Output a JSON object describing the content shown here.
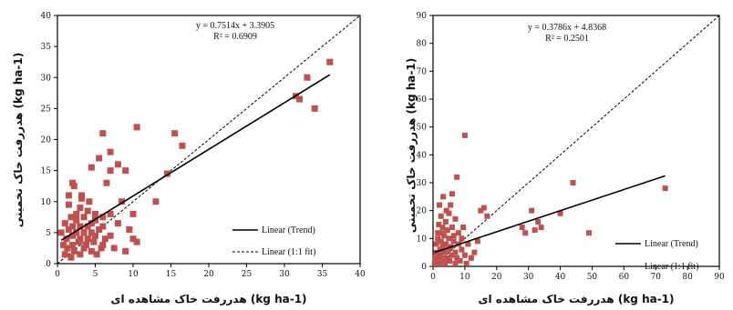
{
  "chart_data": [
    {
      "type": "scatter",
      "xlabel": "هدررفت خاک مشاهده ای (kg ha-1)",
      "ylabel": "هدررفت خاک تخمینی (kg ha-1)",
      "xlim": [
        0,
        40
      ],
      "ylim": [
        0,
        40
      ],
      "x_ticks": [
        "0",
        "5",
        "10",
        "15",
        "20",
        "25",
        "30",
        "35",
        "40"
      ],
      "y_ticks": [
        "0",
        "5",
        "10",
        "15",
        "20",
        "25",
        "30",
        "35",
        "40"
      ],
      "equation": "y = 0.7514x + 3.3905",
      "r2": "R² = 0.6909",
      "trend": {
        "slope": 0.7514,
        "intercept": 3.3905
      },
      "legend": [
        "Linear (Trend)",
        "Linear (1:1 fit)"
      ],
      "legend_position": "bottom-right",
      "color": "#c0504d",
      "points": [
        [
          0.5,
          5
        ],
        [
          0.8,
          3
        ],
        [
          1,
          1.5
        ],
        [
          1,
          6.5
        ],
        [
          1.2,
          4
        ],
        [
          1.3,
          2.5
        ],
        [
          1.5,
          9.5
        ],
        [
          1.5,
          11
        ],
        [
          1.5,
          5.5
        ],
        [
          1.8,
          1
        ],
        [
          1.8,
          7.5
        ],
        [
          2,
          3
        ],
        [
          2,
          4.5
        ],
        [
          2,
          6
        ],
        [
          2,
          13
        ],
        [
          2.2,
          12.5
        ],
        [
          2.2,
          2
        ],
        [
          2.5,
          5
        ],
        [
          2.5,
          7
        ],
        [
          2.5,
          8
        ],
        [
          2.8,
          3.5
        ],
        [
          3,
          1.5
        ],
        [
          3,
          4
        ],
        [
          3,
          6
        ],
        [
          3,
          9
        ],
        [
          3.2,
          10.5
        ],
        [
          3.2,
          11
        ],
        [
          3.5,
          2.5
        ],
        [
          3.5,
          5
        ],
        [
          3.5,
          7.5
        ],
        [
          3.8,
          3
        ],
        [
          4,
          4
        ],
        [
          4,
          6
        ],
        [
          4,
          8.5
        ],
        [
          4.2,
          10
        ],
        [
          4.5,
          2
        ],
        [
          4.5,
          5
        ],
        [
          4.5,
          6.5
        ],
        [
          4.5,
          15.5
        ],
        [
          4.8,
          3.5
        ],
        [
          5,
          4.5
        ],
        [
          5,
          7
        ],
        [
          5,
          8
        ],
        [
          5.2,
          1.5
        ],
        [
          5.5,
          5.5
        ],
        [
          5.5,
          17
        ],
        [
          5.8,
          2.5
        ],
        [
          6,
          3
        ],
        [
          6,
          6
        ],
        [
          6,
          7.5
        ],
        [
          6,
          21
        ],
        [
          6.3,
          4
        ],
        [
          6.5,
          13
        ],
        [
          7,
          8
        ],
        [
          7,
          15
        ],
        [
          7,
          18
        ],
        [
          7,
          4.5
        ],
        [
          7.5,
          2.5
        ],
        [
          8,
          6.5
        ],
        [
          8,
          16
        ],
        [
          8.5,
          10
        ],
        [
          9,
          15
        ],
        [
          9,
          2
        ],
        [
          9.5,
          5.5
        ],
        [
          10,
          8
        ],
        [
          10,
          4
        ],
        [
          10.5,
          3.5
        ],
        [
          10.5,
          22
        ],
        [
          13,
          10
        ],
        [
          14.5,
          14.5
        ],
        [
          15.5,
          21
        ],
        [
          16.5,
          19
        ],
        [
          31.5,
          27
        ],
        [
          32,
          26.5
        ],
        [
          33,
          30
        ],
        [
          34,
          25
        ],
        [
          36,
          32.5
        ]
      ]
    },
    {
      "type": "scatter",
      "xlabel": "هدررفت خاک مشاهده ای (kg ha-1)",
      "ylabel": "هدررفت خاک تخمینی (kg ha-1)",
      "xlim": [
        0,
        90
      ],
      "ylim": [
        0,
        90
      ],
      "x_ticks": [
        "0",
        "10",
        "20",
        "30",
        "40",
        "50",
        "60",
        "70",
        "80",
        "90"
      ],
      "y_ticks": [
        "0",
        "10",
        "20",
        "30",
        "40",
        "50",
        "60",
        "70",
        "80",
        "90"
      ],
      "equation": "y = 0.3786x + 4.8368",
      "r2": "R² = 0.2501",
      "trend": {
        "slope": 0.3786,
        "intercept": 4.8368
      },
      "legend": [
        "Linear (Trend)",
        "Linear (1:1 fit)"
      ],
      "legend_position": "bottom-right",
      "color": "#c0504d",
      "points": [
        [
          0.5,
          1
        ],
        [
          0.8,
          3
        ],
        [
          1,
          5
        ],
        [
          1,
          8
        ],
        [
          1.2,
          2
        ],
        [
          1.5,
          10
        ],
        [
          1.5,
          12
        ],
        [
          1.8,
          15
        ],
        [
          2,
          1
        ],
        [
          2,
          4
        ],
        [
          2,
          22
        ],
        [
          2.2,
          6
        ],
        [
          2.5,
          3
        ],
        [
          2.5,
          9
        ],
        [
          2.5,
          18
        ],
        [
          2.8,
          12
        ],
        [
          3,
          2
        ],
        [
          3,
          7
        ],
        [
          3,
          14
        ],
        [
          3.2,
          25
        ],
        [
          3.5,
          5
        ],
        [
          3.5,
          11
        ],
        [
          3.8,
          1
        ],
        [
          4,
          8
        ],
        [
          4,
          16
        ],
        [
          4.2,
          20
        ],
        [
          4.5,
          3
        ],
        [
          4.5,
          13
        ],
        [
          4.8,
          6
        ],
        [
          5,
          10
        ],
        [
          5,
          19
        ],
        [
          5.2,
          2
        ],
        [
          5.5,
          7
        ],
        [
          5.5,
          22
        ],
        [
          5.8,
          4
        ],
        [
          6,
          14
        ],
        [
          6,
          26
        ],
        [
          6.5,
          9
        ],
        [
          6.5,
          11
        ],
        [
          7,
          1
        ],
        [
          7,
          5
        ],
        [
          7,
          17
        ],
        [
          7.5,
          3
        ],
        [
          7.5,
          32
        ],
        [
          8,
          8
        ],
        [
          8,
          12
        ],
        [
          8.5,
          2
        ],
        [
          9,
          6
        ],
        [
          9,
          10
        ],
        [
          9.5,
          14
        ],
        [
          10,
          4
        ],
        [
          10,
          47
        ],
        [
          10.5,
          1
        ],
        [
          11,
          8
        ],
        [
          12,
          3
        ],
        [
          13,
          5
        ],
        [
          14,
          9
        ],
        [
          15,
          20
        ],
        [
          16,
          21
        ],
        [
          17,
          18
        ],
        [
          28,
          14
        ],
        [
          29,
          12
        ],
        [
          31,
          20
        ],
        [
          32,
          13
        ],
        [
          33,
          16
        ],
        [
          34,
          14
        ],
        [
          40,
          19
        ],
        [
          44,
          30
        ],
        [
          49,
          12
        ],
        [
          73,
          28
        ]
      ]
    }
  ]
}
